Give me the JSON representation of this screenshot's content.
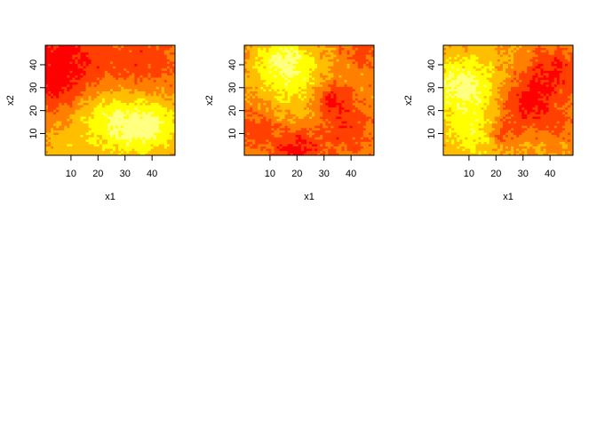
{
  "chart_data": [
    {
      "type": "heatmap",
      "xlabel": "x1",
      "ylabel": "x2",
      "xlim": [
        0.5,
        48.5
      ],
      "ylim": [
        0.5,
        48.5
      ],
      "xticks": [
        10,
        20,
        30,
        40
      ],
      "yticks": [
        10,
        20,
        30,
        40
      ],
      "palette": [
        "#FF0000",
        "#FF4000",
        "#FF8000",
        "#FFBF00",
        "#FFFF00",
        "#FFFF80"
      ],
      "blobs": [
        {
          "x": 8,
          "y": 44,
          "s": 12,
          "a": -1.0
        },
        {
          "x": 3,
          "y": 30,
          "s": 7,
          "a": -0.6
        },
        {
          "x": 38,
          "y": 42,
          "s": 9,
          "a": -0.6
        },
        {
          "x": 32,
          "y": 12,
          "s": 10,
          "a": 1.0
        },
        {
          "x": 42,
          "y": 14,
          "s": 7,
          "a": 0.7
        },
        {
          "x": 22,
          "y": 18,
          "s": 8,
          "a": 0.6
        },
        {
          "x": 8,
          "y": 4,
          "s": 6,
          "a": 0.4
        }
      ]
    },
    {
      "type": "heatmap",
      "xlabel": "x1",
      "ylabel": "x2",
      "xlim": [
        0.5,
        48.5
      ],
      "ylim": [
        0.5,
        48.5
      ],
      "xticks": [
        10,
        20,
        30,
        40
      ],
      "yticks": [
        10,
        20,
        30,
        40
      ],
      "palette": [
        "#FF0000",
        "#FF4000",
        "#FF8000",
        "#FFBF00",
        "#FFFF00",
        "#FFFF80"
      ],
      "blobs": [
        {
          "x": 15,
          "y": 42,
          "s": 8,
          "a": 1.0
        },
        {
          "x": 20,
          "y": 28,
          "s": 10,
          "a": 0.5
        },
        {
          "x": 33,
          "y": 25,
          "s": 5,
          "a": -0.9
        },
        {
          "x": 20,
          "y": 3,
          "s": 6,
          "a": -0.9
        },
        {
          "x": 38,
          "y": 12,
          "s": 7,
          "a": -0.6
        },
        {
          "x": 5,
          "y": 12,
          "s": 6,
          "a": -0.5
        },
        {
          "x": 44,
          "y": 46,
          "s": 5,
          "a": -0.5
        }
      ]
    },
    {
      "type": "heatmap",
      "xlabel": "x1",
      "ylabel": "x2",
      "xlim": [
        0.5,
        48.5
      ],
      "ylim": [
        0.5,
        48.5
      ],
      "xticks": [
        10,
        20,
        30,
        40
      ],
      "yticks": [
        10,
        20,
        30,
        40
      ],
      "palette": [
        "#FF0000",
        "#FF4000",
        "#FF8000",
        "#FFBF00",
        "#FFFF00",
        "#FFFF80"
      ],
      "blobs": [
        {
          "x": 8,
          "y": 30,
          "s": 9,
          "a": 1.0
        },
        {
          "x": 12,
          "y": 10,
          "s": 7,
          "a": 0.6
        },
        {
          "x": 32,
          "y": 23,
          "s": 8,
          "a": -1.0
        },
        {
          "x": 42,
          "y": 38,
          "s": 8,
          "a": -0.8
        },
        {
          "x": 22,
          "y": 10,
          "s": 4,
          "a": -0.6
        },
        {
          "x": 45,
          "y": 12,
          "s": 5,
          "a": -0.4
        }
      ]
    }
  ]
}
